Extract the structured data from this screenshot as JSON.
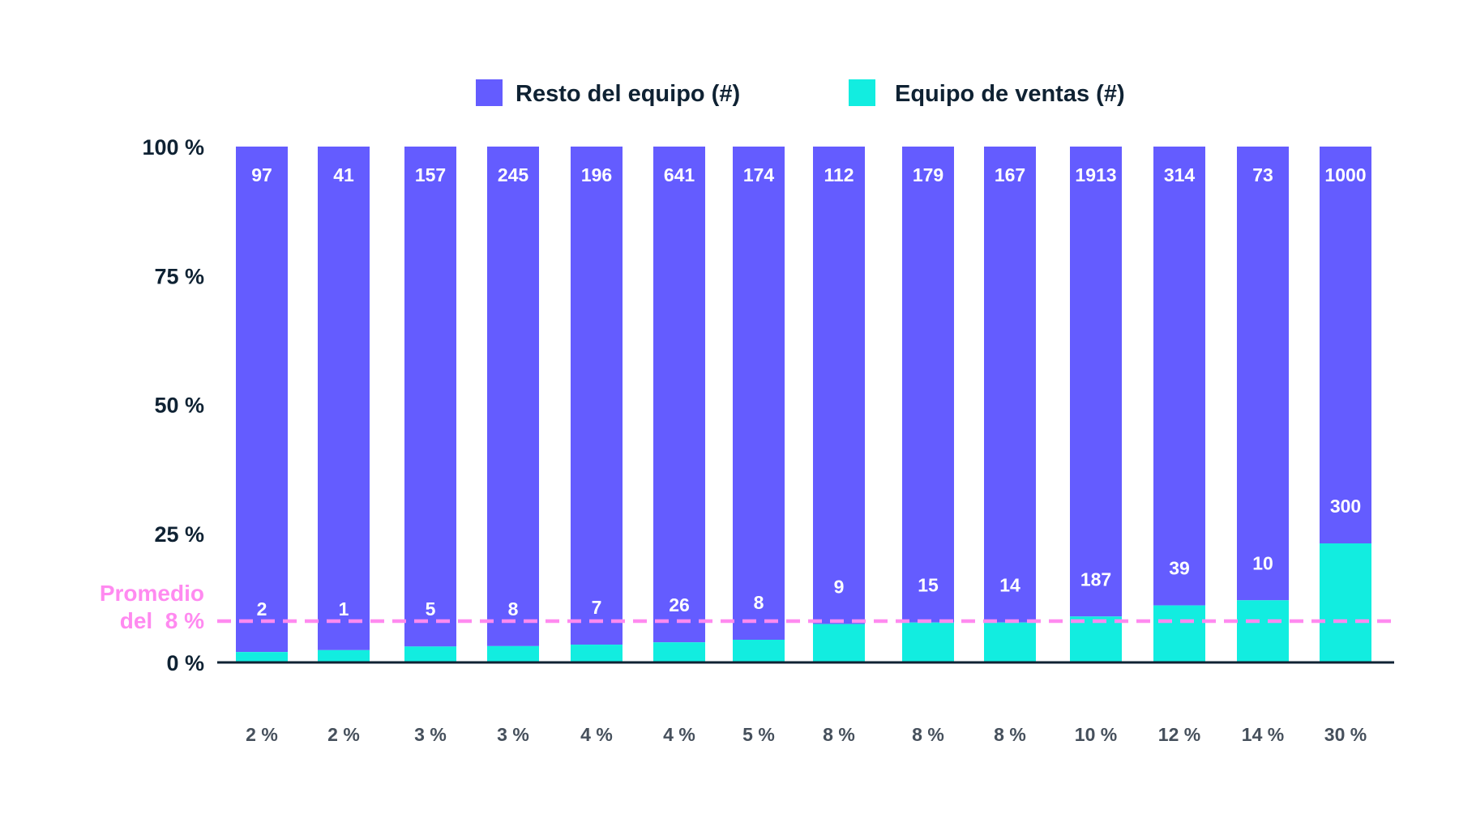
{
  "chart_data": {
    "type": "bar",
    "stacked": true,
    "normalized": true,
    "categories": [
      "2 %",
      "2 %",
      "3 %",
      "3 %",
      "4 %",
      "4 %",
      "5 %",
      "8 %",
      "8 %",
      "8 %",
      "10 %",
      "12 %",
      "14 %",
      "30 %"
    ],
    "series": [
      {
        "name": "Resto del equipo (#)",
        "color": "#645cff",
        "values": [
          97,
          41,
          157,
          245,
          196,
          641,
          174,
          112,
          179,
          167,
          1913,
          314,
          73,
          1000
        ]
      },
      {
        "name": "Equipo de ventas (#)",
        "color": "#12ede0",
        "values": [
          2,
          1,
          5,
          8,
          7,
          26,
          8,
          9,
          15,
          14,
          187,
          39,
          10,
          300
        ]
      }
    ],
    "yticks": [
      "0 %",
      "25 %",
      "50 %",
      "75 %",
      "100 %"
    ],
    "ylim": [
      0,
      100
    ],
    "legend": "top",
    "grid": false,
    "reference_line": {
      "value": 8,
      "label_line1": "Promedio",
      "label_line2": "del  8 %",
      "color": "#ff8af0",
      "style": "dashed"
    },
    "axis_color": "#0f2233"
  }
}
